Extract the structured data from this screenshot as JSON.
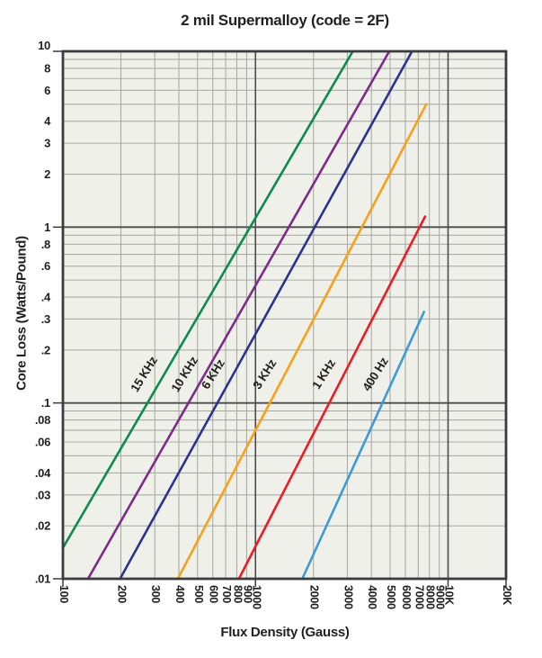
{
  "title": "2 mil Supermalloy (code = 2F)",
  "chart_data": {
    "type": "line",
    "title": "2 mil Supermalloy (code = 2F)",
    "x_axis": {
      "label": "Flux Density (Gauss)",
      "scale": "log",
      "range": [
        100,
        20000
      ],
      "tick_values": [
        100,
        200,
        300,
        400,
        500,
        600,
        700,
        800,
        900,
        1000,
        2000,
        3000,
        4000,
        5000,
        6000,
        7000,
        8000,
        9000,
        10000,
        20000
      ],
      "tick_labels": [
        "100",
        "200",
        "300",
        "400",
        "500",
        "600",
        "700",
        "800",
        "900",
        "1000",
        "2000",
        "3000",
        "4000",
        "5000",
        "6000",
        "7000",
        "8000",
        "9000",
        "10K",
        "20K"
      ],
      "major_gridlines": [
        1000,
        10000
      ]
    },
    "y_axis": {
      "label": "Core Loss (Watts/Pound)",
      "scale": "log",
      "range": [
        0.01,
        10
      ],
      "tick_values": [
        10,
        8,
        6,
        4,
        3,
        2,
        1,
        0.8,
        0.6,
        0.4,
        0.3,
        0.2,
        0.1,
        0.08,
        0.06,
        0.04,
        0.03,
        0.02,
        0.01
      ],
      "tick_labels": [
        "10",
        "8",
        "6",
        "4",
        "3",
        "2",
        "1",
        ".8",
        ".6",
        ".4",
        ".3",
        ".2",
        ".1",
        ".08",
        ".06",
        ".04",
        ".03",
        ".02",
        ".01"
      ],
      "major_gridlines": [
        1,
        0.1
      ]
    },
    "grid": "on",
    "legend": "inline-labels-on-curves",
    "series": [
      {
        "name": "15 KHz",
        "color": "#0e8a4e",
        "points": [
          [
            100,
            0.015
          ],
          [
            3200,
            10
          ]
        ]
      },
      {
        "name": "10 KHz",
        "color": "#7d2b8b",
        "points": [
          [
            135,
            0.01
          ],
          [
            4950,
            10
          ]
        ]
      },
      {
        "name": "6 KHz",
        "color": "#2e3192",
        "points": [
          [
            198,
            0.01
          ],
          [
            6500,
            10
          ]
        ]
      },
      {
        "name": "3 KHz",
        "color": "#f9a01b",
        "points": [
          [
            395,
            0.01
          ],
          [
            7700,
            5.0
          ]
        ]
      },
      {
        "name": "1 KHz",
        "color": "#ec1c24",
        "points": [
          [
            820,
            0.01
          ],
          [
            7600,
            1.15
          ]
        ]
      },
      {
        "name": "400 Hz",
        "color": "#3d9ad6",
        "points": [
          [
            1750,
            0.01
          ],
          [
            7500,
            0.33
          ]
        ]
      }
    ],
    "colors": {
      "plot_background": "#eef0e9",
      "grid_minor": "#abada5",
      "grid_major": "#4a4b4d",
      "border": "#3b3c3e",
      "text": "#231f20"
    }
  }
}
